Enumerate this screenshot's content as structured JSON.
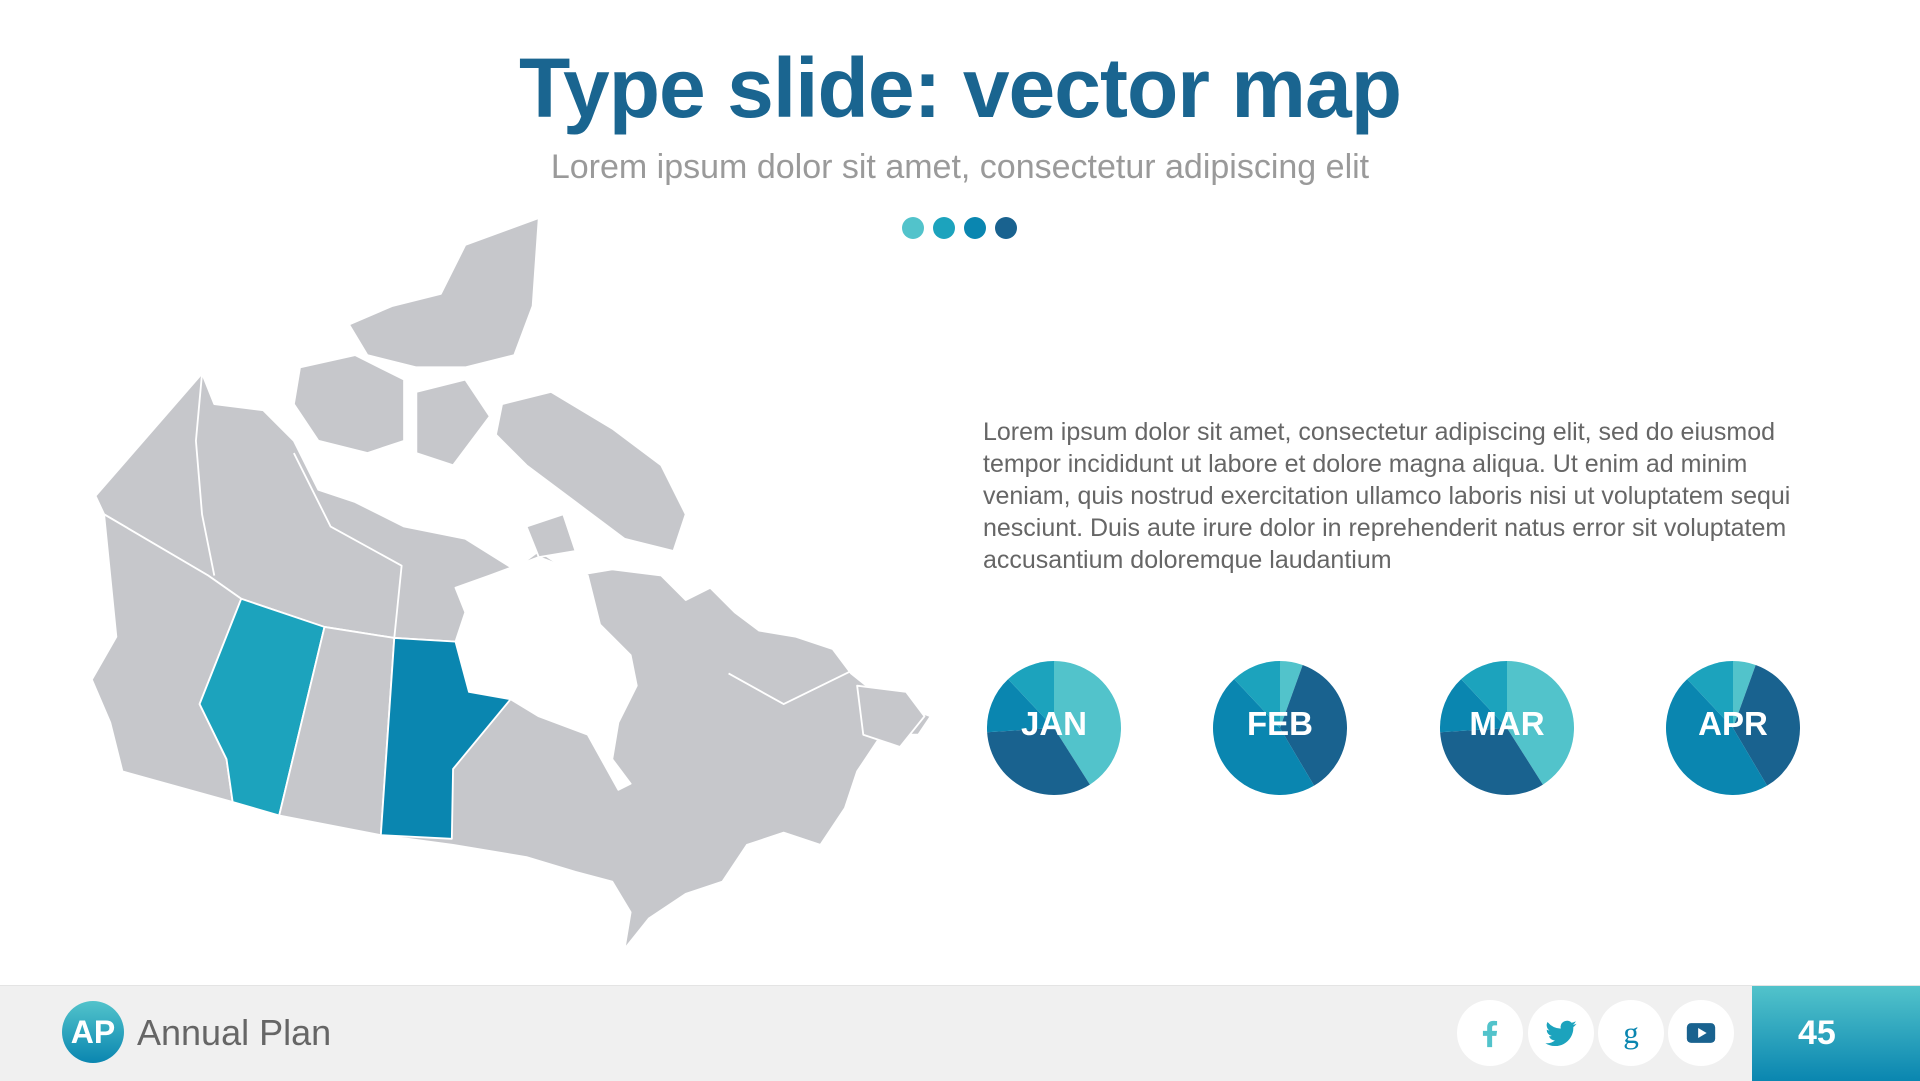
{
  "header": {
    "title": "Type slide: vector map",
    "subtitle": "Lorem ipsum dolor sit amet, consectetur adipiscing elit",
    "dot_colors": [
      "#52c3cb",
      "#1ca3bd",
      "#0a86b0",
      "#19628f"
    ]
  },
  "map": {
    "base_color": "#c6c7cb",
    "highlighted": [
      {
        "region": "Alberta",
        "color": "#1ca3bd"
      },
      {
        "region": "Manitoba",
        "color": "#0a86b0"
      }
    ]
  },
  "body_text": "Lorem ipsum dolor sit amet, consectetur adipiscing elit, sed do eiusmod tempor incididunt ut labore et dolore magna aliqua. Ut enim ad minim veniam, quis nostrud exercitation ullamco laboris nisi ut voluptatem sequi nesciunt. Duis aute irure dolor in reprehenderit natus error sit voluptatem accusantium doloremque laudantium",
  "chart_data": {
    "type": "pie",
    "slice_colors": [
      "#52c3cb",
      "#19628f",
      "#0a86b0",
      "#1ca3bd"
    ],
    "charts": [
      {
        "label": "JAN",
        "values": [
          41,
          33,
          14,
          12
        ]
      },
      {
        "label": "FEB",
        "values": [
          5.5,
          36,
          46.5,
          12
        ]
      },
      {
        "label": "MAR",
        "values": [
          41,
          33,
          14,
          12
        ]
      },
      {
        "label": "APR",
        "values": [
          5.5,
          36,
          46.5,
          12
        ]
      }
    ]
  },
  "footer": {
    "logo_text": "AP",
    "brand": "Annual Plan",
    "social": [
      {
        "icon": "facebook-icon",
        "color": "#52c3cb"
      },
      {
        "icon": "twitter-icon",
        "color": "#1ca3bd"
      },
      {
        "icon": "google-plus-icon",
        "color": "#0a86b0"
      },
      {
        "icon": "youtube-icon",
        "color": "#19628f"
      }
    ],
    "page_number": "45"
  }
}
